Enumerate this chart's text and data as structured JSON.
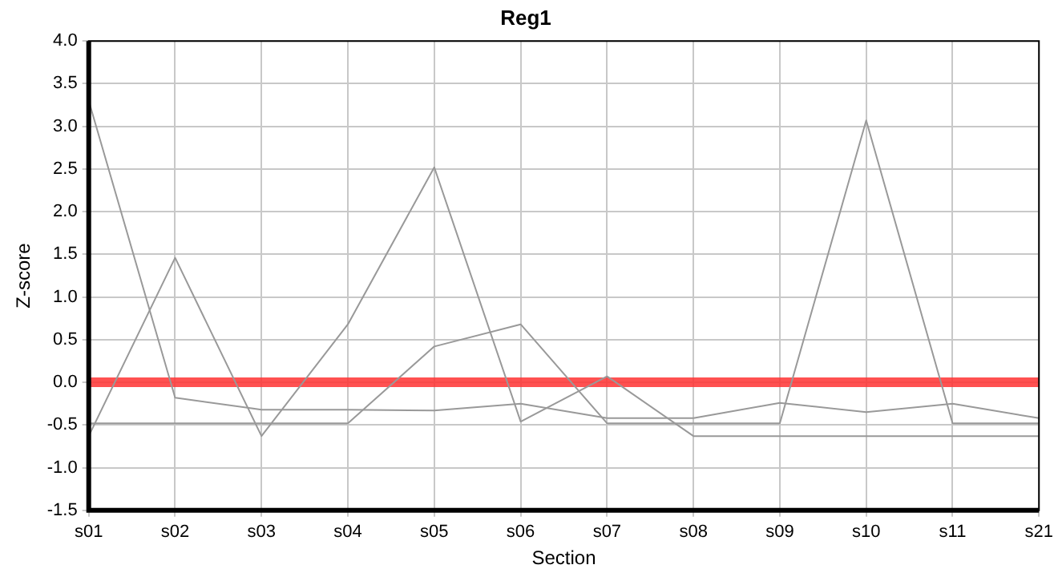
{
  "chart_data": {
    "type": "line",
    "title": "Reg1",
    "xlabel": "Section",
    "ylabel": "Z-score",
    "categories": [
      "s01",
      "s02",
      "s03",
      "s04",
      "s05",
      "s06",
      "s07",
      "s08",
      "s09",
      "s10",
      "s11",
      "s21"
    ],
    "series": [
      {
        "color": "#999999",
        "values": [
          3.3,
          -0.18,
          -0.32,
          -0.32,
          -0.33,
          -0.25,
          -0.42,
          -0.42,
          -0.24,
          -0.35,
          -0.25,
          -0.42
        ]
      },
      {
        "color": "#999999",
        "values": [
          -0.48,
          -0.48,
          -0.48,
          -0.48,
          0.42,
          0.68,
          -0.48,
          -0.48,
          -0.48,
          3.07,
          -0.48,
          -0.48
        ]
      },
      {
        "color": "#999999",
        "values": [
          -0.63,
          1.46,
          -0.63,
          0.68,
          2.52,
          -0.46,
          0.07,
          -0.63,
          -0.63,
          -0.63,
          -0.63,
          -0.63
        ]
      }
    ],
    "ylim": [
      -1.5,
      4
    ],
    "yticks": [
      {
        "value": -1.5,
        "label": "-1.5"
      },
      {
        "value": -1,
        "label": "-1.0"
      },
      {
        "value": -0.5,
        "label": "-0.5"
      },
      {
        "value": 0,
        "label": "0.0"
      },
      {
        "value": 0.5,
        "label": "0.5"
      },
      {
        "value": 1,
        "label": "1.0"
      },
      {
        "value": 1.5,
        "label": "1.5"
      },
      {
        "value": 2,
        "label": "2.0"
      },
      {
        "value": 2.5,
        "label": "2.5"
      },
      {
        "value": 3,
        "label": "3.0"
      },
      {
        "value": 3.5,
        "label": "3.5"
      },
      {
        "value": 4,
        "label": "4.0"
      }
    ],
    "ref_lines": [
      {
        "axis": "y",
        "value": 0,
        "color": "#ff3333"
      }
    ],
    "grid": true,
    "legend": false,
    "marker": "none",
    "line_style": "solid"
  }
}
